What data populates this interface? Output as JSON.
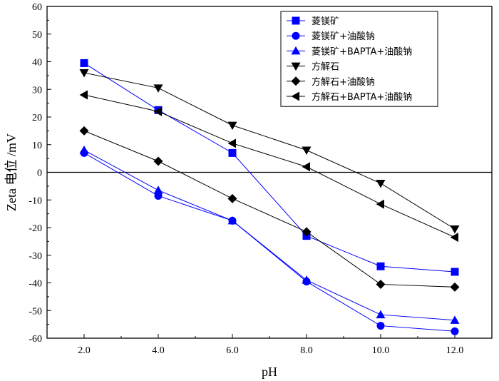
{
  "chart_data": {
    "type": "line",
    "title": "",
    "xlabel": "pH",
    "ylabel": "Zeta 电位 /mV",
    "x": [
      2.0,
      4.0,
      6.0,
      8.0,
      10.0,
      12.0
    ],
    "xlim": [
      1.0,
      13.0
    ],
    "ylim": [
      -60,
      60
    ],
    "xticks": [
      "2.0",
      "4.0",
      "6.0",
      "8.0",
      "10.0",
      "12.0"
    ],
    "yticks": [
      "-60",
      "-50",
      "-40",
      "-30",
      "-20",
      "-10",
      "0",
      "10",
      "20",
      "30",
      "40",
      "50",
      "60"
    ],
    "zero_line": true,
    "legend_position": "top-right",
    "series": [
      {
        "name": "菱镁矿",
        "marker": "square",
        "color": "#0000ff",
        "values": [
          39.5,
          22.5,
          7.0,
          -23.0,
          -34.0,
          -36.0
        ]
      },
      {
        "name": "菱镁矿+油酸钠",
        "marker": "circle",
        "color": "#0000ff",
        "values": [
          7.0,
          -8.5,
          -17.5,
          -39.5,
          -55.5,
          -57.5
        ]
      },
      {
        "name": "菱镁矿+BAPTA+油酸钠",
        "marker": "triangle-up",
        "color": "#0000ff",
        "values": [
          8.0,
          -6.5,
          -17.5,
          -39.0,
          -51.5,
          -53.5
        ]
      },
      {
        "name": "方解石",
        "marker": "triangle-down",
        "color": "#000000",
        "values": [
          36.0,
          30.5,
          17.0,
          8.0,
          -4.0,
          -20.5
        ]
      },
      {
        "name": "方解石+油酸钠",
        "marker": "diamond",
        "color": "#000000",
        "values": [
          15.0,
          4.0,
          -9.5,
          -21.5,
          -40.5,
          -41.5
        ]
      },
      {
        "name": "方解石+BAPTA+油酸钠",
        "marker": "triangle-left",
        "color": "#000000",
        "values": [
          28.0,
          22.0,
          10.5,
          2.0,
          -11.5,
          -23.5
        ]
      }
    ]
  }
}
